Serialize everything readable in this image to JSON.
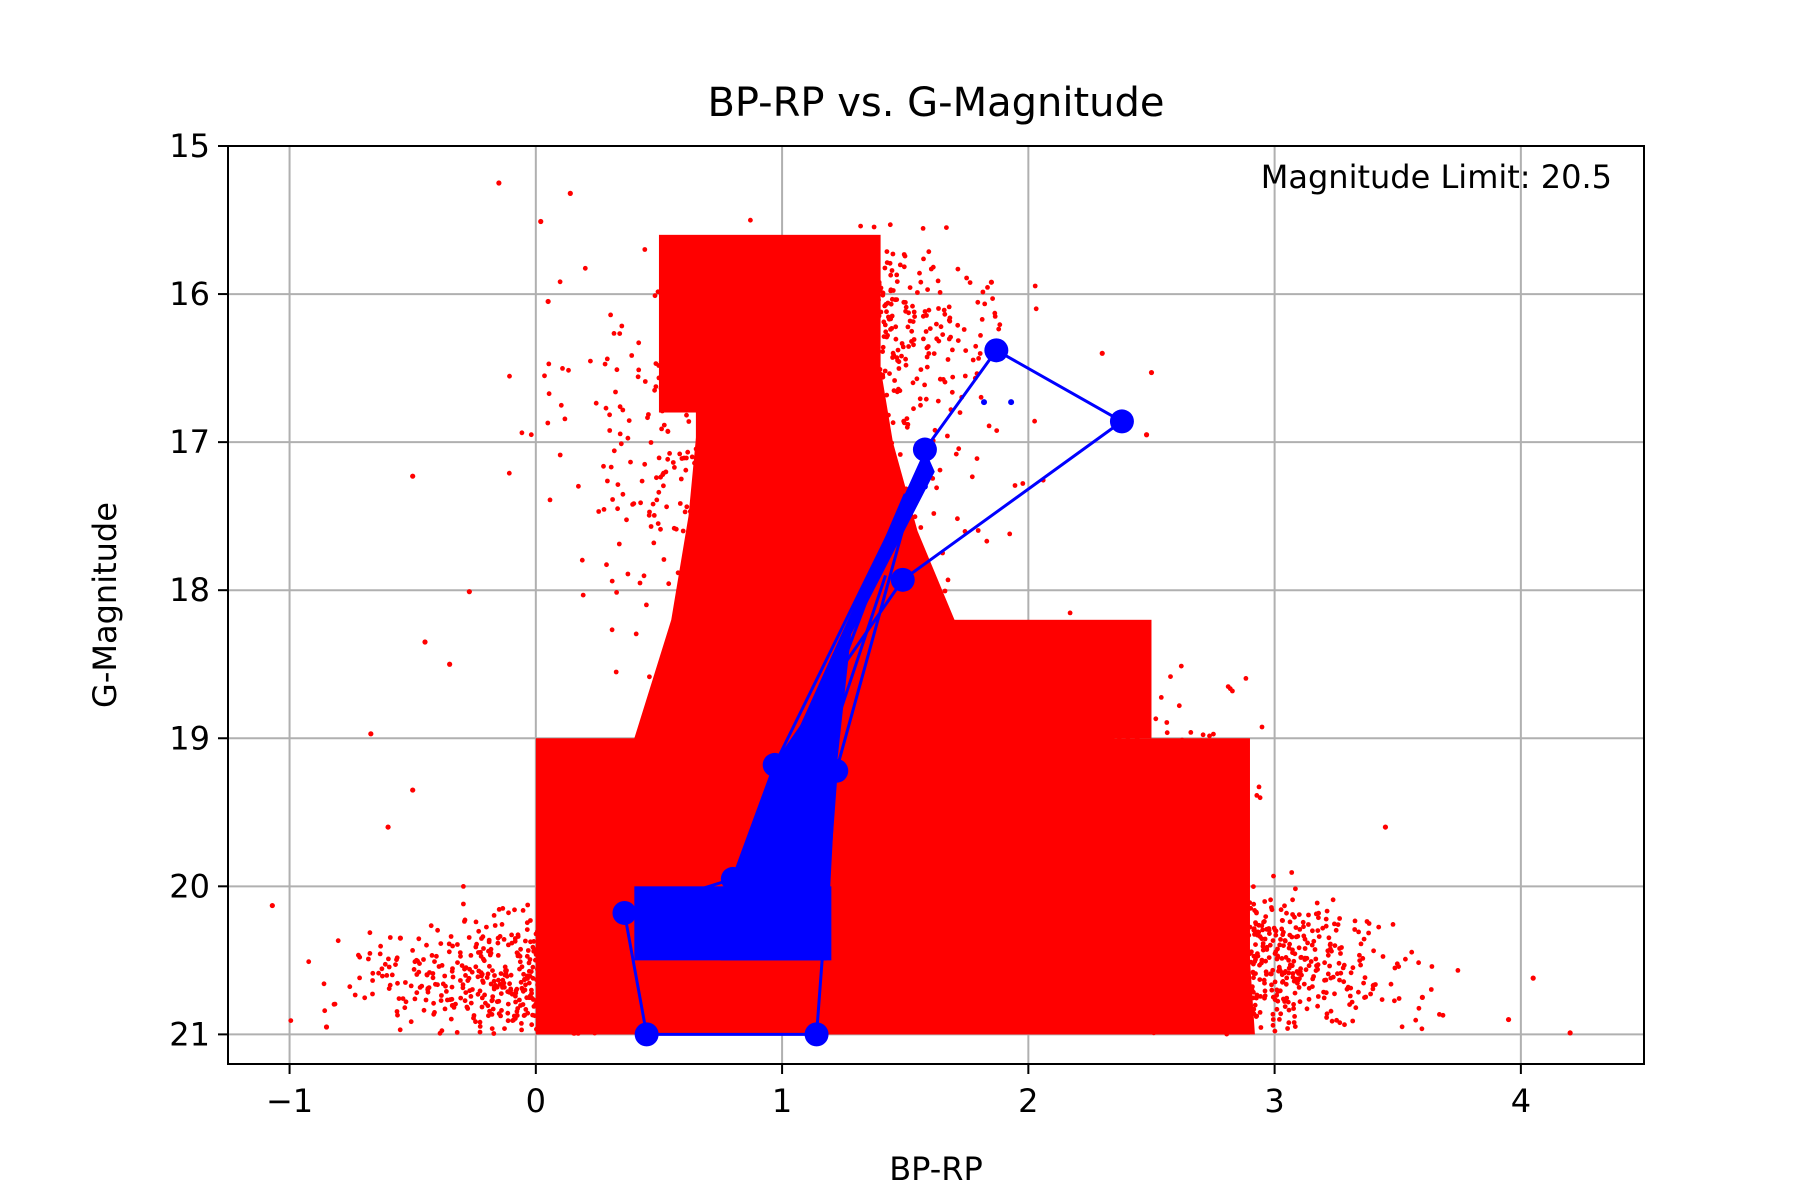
{
  "chart_data": {
    "type": "scatter",
    "title": "BP-RP vs. G-Magnitude",
    "xlabel": "BP-RP",
    "ylabel": "G-Magnitude",
    "annotation": "Magnitude Limit: 20.5",
    "xlim": [
      -1.25,
      4.5
    ],
    "ylim": [
      21.2,
      15.0
    ],
    "y_inverted": true,
    "grid": true,
    "xticks": [
      -1,
      0,
      1,
      2,
      3,
      4
    ],
    "xtick_labels": [
      "−1",
      "0",
      "1",
      "2",
      "3",
      "4"
    ],
    "yticks": [
      15,
      16,
      17,
      18,
      19,
      20,
      21
    ],
    "ytick_labels": [
      "15",
      "16",
      "17",
      "18",
      "19",
      "20",
      "21"
    ],
    "colors": {
      "stars": "#ff0000",
      "isochrone": "#0000ff",
      "grid": "#b0b0b0"
    },
    "series": [
      {
        "kind": "scatter",
        "color": "#ff0000",
        "regions": [
          {
            "x": [
              0.65,
              1.25
            ],
            "y": [
              16.7,
              21.0
            ]
          },
          {
            "x": [
              0.0,
              2.9
            ],
            "y": [
              19.0,
              21.0
            ]
          },
          {
            "x": [
              1.2,
              2.5
            ],
            "y": [
              18.2,
              19.0
            ]
          },
          {
            "x": [
              0.5,
              1.4
            ],
            "y": [
              15.6,
              16.8
            ]
          }
        ],
        "outliers": [
          [
            -1.07,
            20.13
          ],
          [
            -0.15,
            15.25
          ],
          [
            0.14,
            15.32
          ],
          [
            0.02,
            15.51
          ],
          [
            -0.5,
            17.23
          ],
          [
            -0.35,
            18.5
          ],
          [
            -0.45,
            18.35
          ],
          [
            -0.27,
            18.01
          ],
          [
            -0.67,
            18.97
          ],
          [
            0.05,
            16.05
          ],
          [
            1.87,
            16.38
          ],
          [
            2.5,
            16.53
          ],
          [
            3.45,
            19.6
          ],
          [
            4.05,
            20.62
          ],
          [
            4.2,
            20.99
          ],
          [
            3.95,
            20.9
          ],
          [
            3.6,
            20.75
          ],
          [
            -0.85,
            20.95
          ],
          [
            -0.55,
            20.35
          ],
          [
            -0.6,
            19.6
          ],
          [
            -0.5,
            19.35
          ],
          [
            1.85,
            15.92
          ],
          [
            2.3,
            16.4
          ],
          [
            2.48,
            16.95
          ]
        ]
      },
      {
        "kind": "line",
        "color": "#0000ff",
        "points": [
          [
            0.45,
            21.0
          ],
          [
            0.36,
            20.18
          ],
          [
            0.8,
            19.95
          ],
          [
            0.97,
            19.18
          ],
          [
            1.49,
            17.93
          ],
          [
            2.38,
            16.86
          ],
          [
            1.87,
            16.38
          ],
          [
            1.58,
            17.05
          ],
          [
            1.22,
            19.22
          ],
          [
            1.14,
            21.0
          ]
        ],
        "band_lines": [
          [
            [
              1.6,
              17.05
            ],
            [
              0.97,
              19.18
            ]
          ],
          [
            [
              1.5,
              17.35
            ],
            [
              1.05,
              19.1
            ]
          ],
          [
            [
              1.45,
              17.6
            ],
            [
              1.12,
              19.05
            ]
          ],
          [
            [
              1.42,
              17.9
            ],
            [
              1.18,
              19.1
            ]
          ]
        ],
        "fill_region": {
          "x": [
            0.4,
            1.2
          ],
          "y": [
            20.0,
            20.5
          ]
        },
        "scatter_small": [
          [
            1.82,
            16.73
          ],
          [
            1.93,
            16.73
          ],
          [
            1.58,
            17.3
          ],
          [
            1.55,
            17.35
          ]
        ]
      }
    ]
  }
}
